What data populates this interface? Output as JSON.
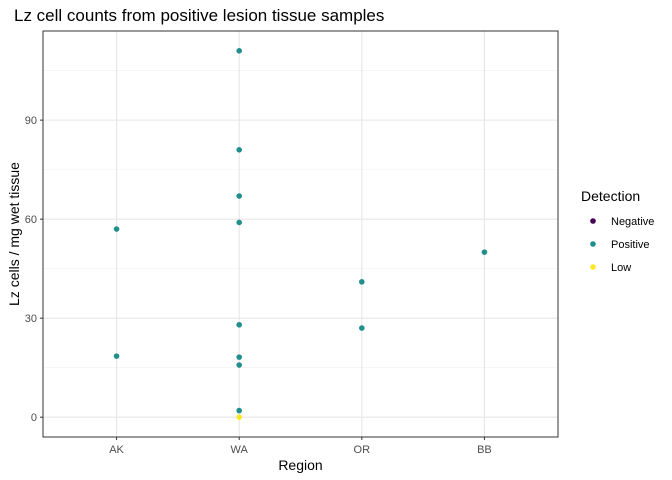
{
  "chart_data": {
    "type": "scatter",
    "title": "Lz cell counts from positive lesion tissue samples",
    "xlabel": "Region",
    "ylabel": "Lz cells / mg wet tissue",
    "categories": [
      "AK",
      "WA",
      "OR",
      "BB"
    ],
    "ylim": [
      -6,
      117
    ],
    "yticks": [
      0,
      30,
      60,
      90
    ],
    "grid": true,
    "legend": {
      "title": "Detection",
      "placement": "right",
      "entries": [
        {
          "label": "Negative",
          "color": "#440154"
        },
        {
          "label": "Positive",
          "color": "#21908C"
        },
        {
          "label": "Low",
          "color": "#FDE725"
        }
      ]
    },
    "points": [
      {
        "x": "AK",
        "y": 57,
        "group": "Positive"
      },
      {
        "x": "AK",
        "y": 18.5,
        "group": "Positive"
      },
      {
        "x": "WA",
        "y": 111,
        "group": "Positive"
      },
      {
        "x": "WA",
        "y": 81,
        "group": "Positive"
      },
      {
        "x": "WA",
        "y": 67,
        "group": "Positive"
      },
      {
        "x": "WA",
        "y": 59,
        "group": "Positive"
      },
      {
        "x": "WA",
        "y": 28,
        "group": "Positive"
      },
      {
        "x": "WA",
        "y": 18.2,
        "group": "Positive"
      },
      {
        "x": "WA",
        "y": 15.8,
        "group": "Positive"
      },
      {
        "x": "WA",
        "y": 2,
        "group": "Positive"
      },
      {
        "x": "WA",
        "y": 0,
        "group": "Low"
      },
      {
        "x": "OR",
        "y": 41,
        "group": "Positive"
      },
      {
        "x": "OR",
        "y": 27,
        "group": "Positive"
      },
      {
        "x": "BB",
        "y": 50,
        "group": "Positive"
      }
    ]
  }
}
